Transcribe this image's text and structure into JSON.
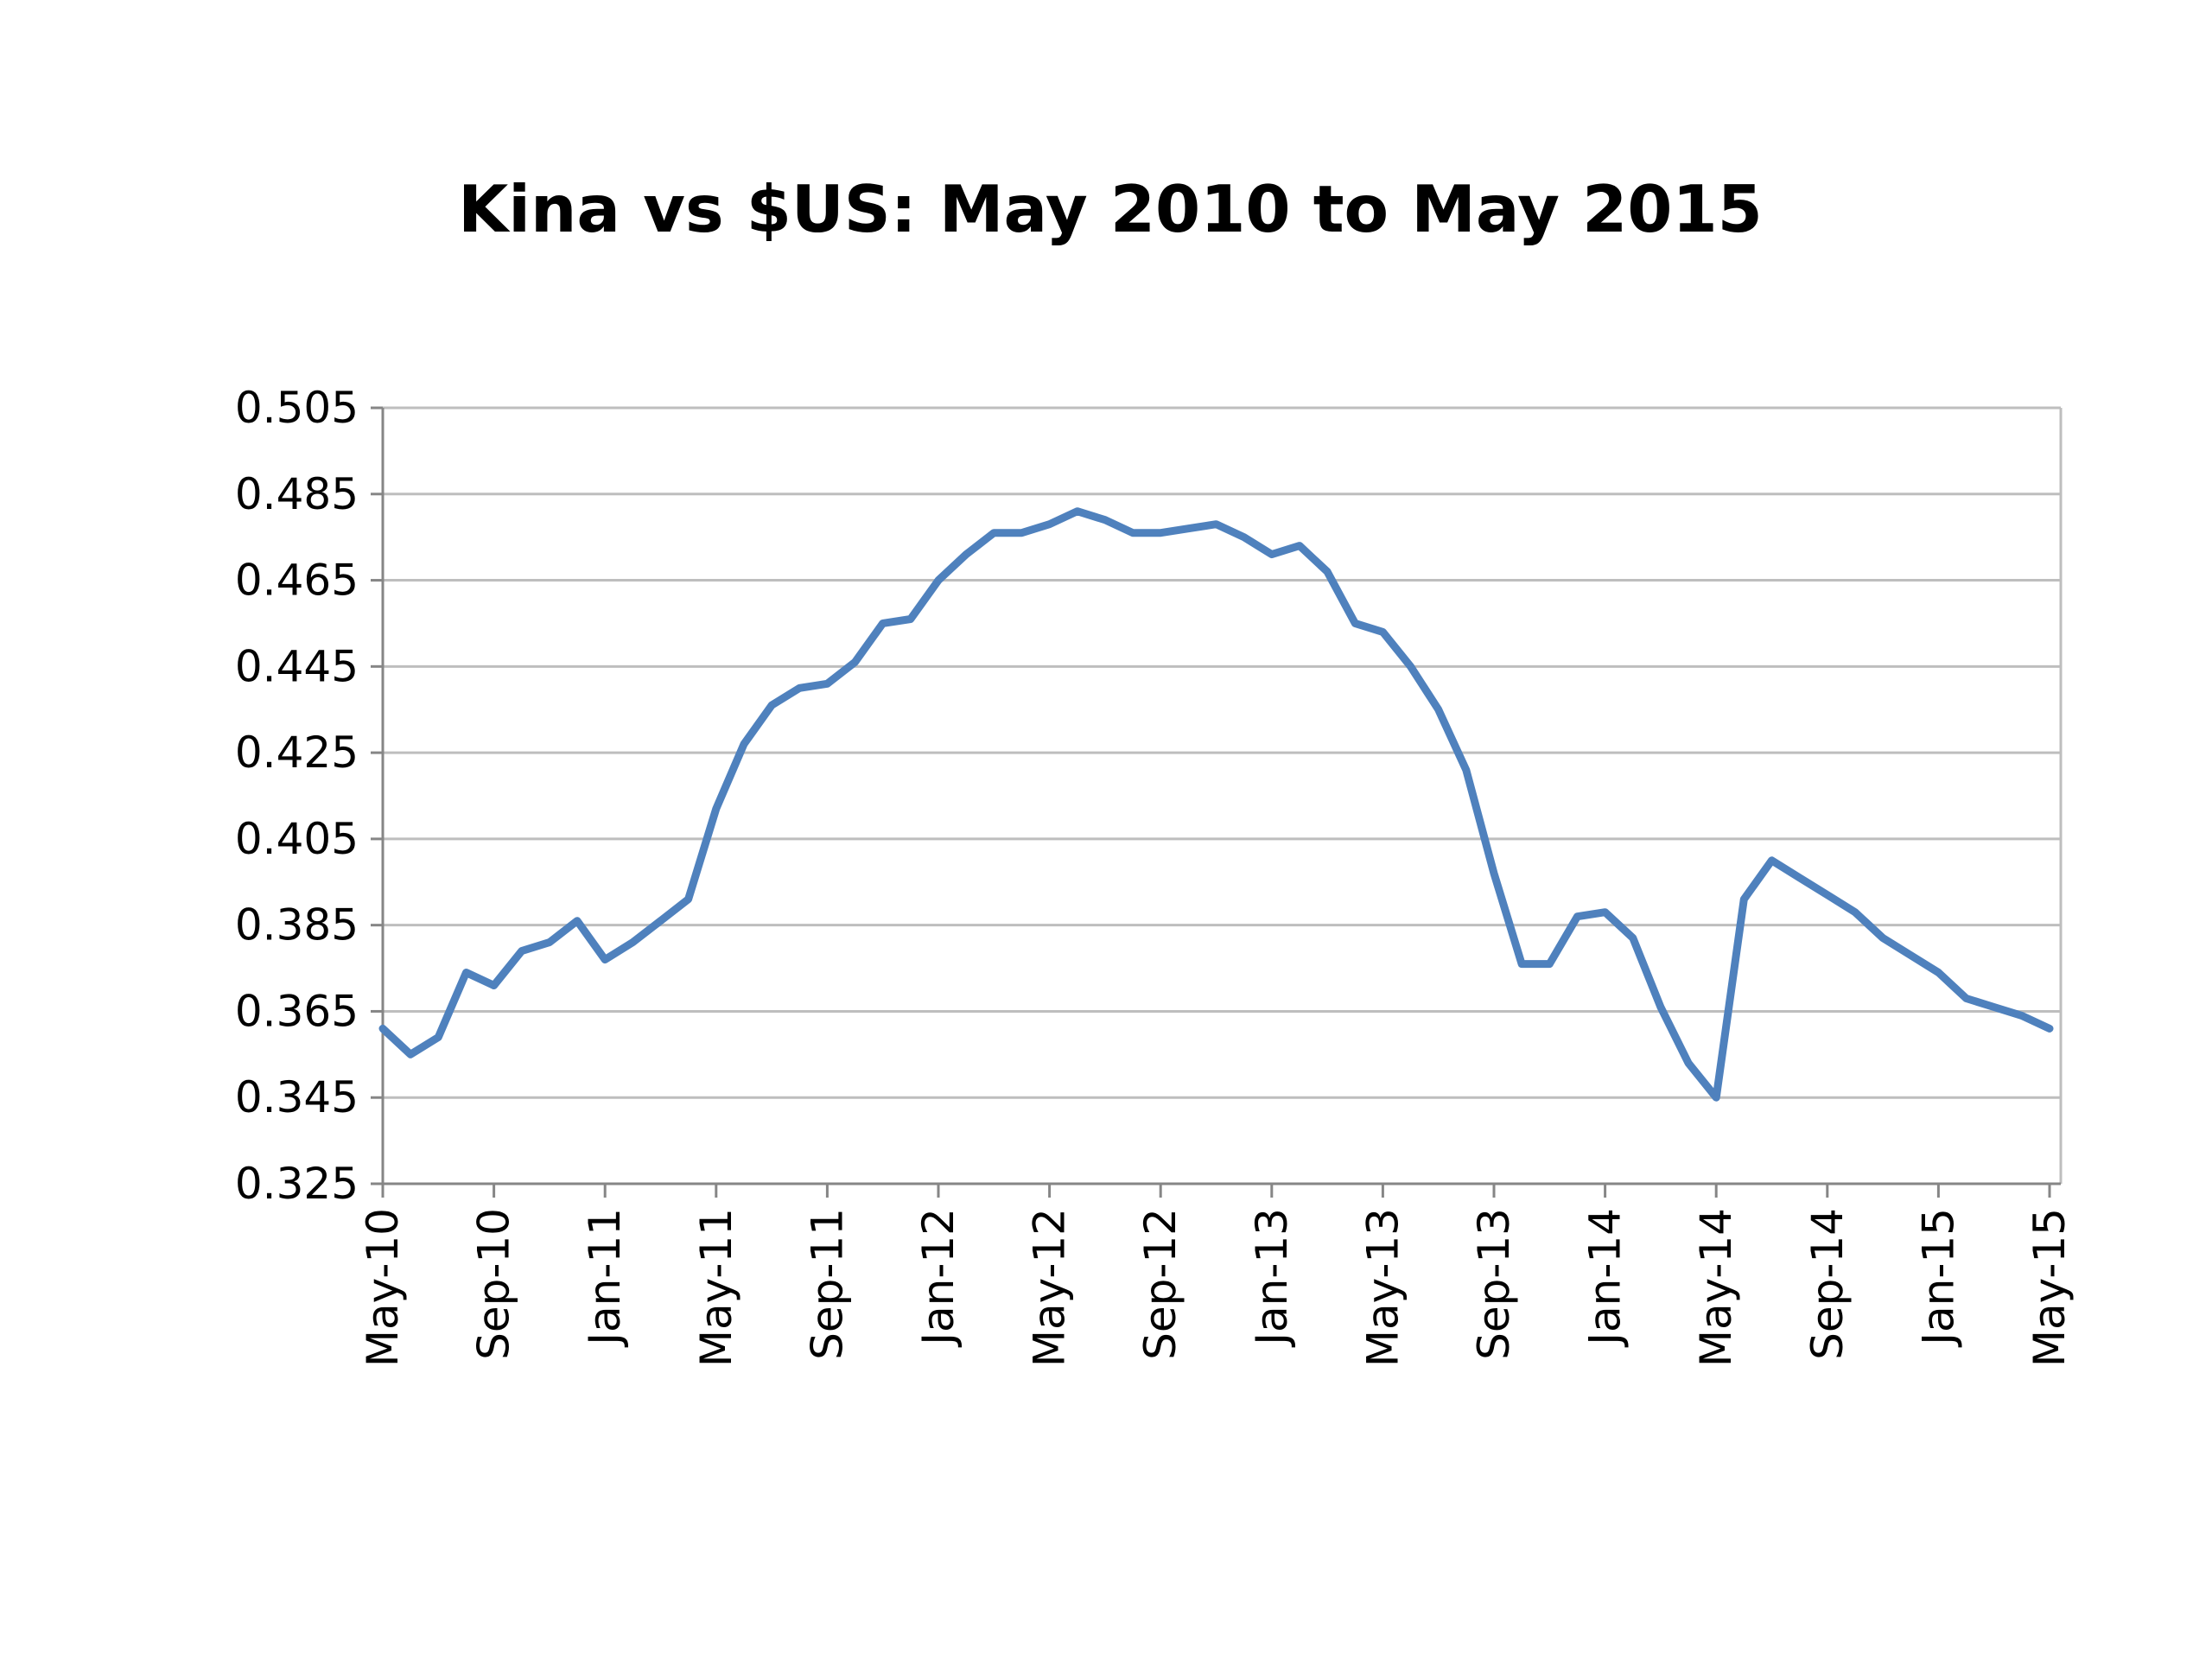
{
  "chart_data": {
    "type": "line",
    "title": "Kina vs $US: May 2010 to May 2015",
    "xlabel": "",
    "ylabel": "",
    "ylim": [
      0.325,
      0.505
    ],
    "yticks": [
      "0.505",
      "0.485",
      "0.465",
      "0.445",
      "0.425",
      "0.405",
      "0.385",
      "0.365",
      "0.345",
      "0.325"
    ],
    "xticks": [
      "May-10",
      "Sep-10",
      "Jan-11",
      "May-11",
      "Sep-11",
      "Jan-12",
      "May-12",
      "Sep-12",
      "Jan-13",
      "May-13",
      "Sep-13",
      "Jan-14",
      "May-14",
      "Sep-14",
      "Jan-15",
      "May-15"
    ],
    "grid": true,
    "legend": "none",
    "line_color": "#4F81BD",
    "x": [
      "May-10",
      "Jun-10",
      "Jul-10",
      "Aug-10",
      "Sep-10",
      "Oct-10",
      "Nov-10",
      "Dec-10",
      "Jan-11",
      "Feb-11",
      "Mar-11",
      "Apr-11",
      "May-11",
      "Jun-11",
      "Jul-11",
      "Aug-11",
      "Sep-11",
      "Oct-11",
      "Nov-11",
      "Dec-11",
      "Jan-12",
      "Feb-12",
      "Mar-12",
      "Apr-12",
      "May-12",
      "Jun-12",
      "Jul-12",
      "Aug-12",
      "Sep-12",
      "Oct-12",
      "Nov-12",
      "Dec-12",
      "Jan-13",
      "Feb-13",
      "Mar-13",
      "Apr-13",
      "May-13",
      "Jun-13",
      "Jul-13",
      "Aug-13",
      "Sep-13",
      "Oct-13",
      "Nov-13",
      "Dec-13",
      "Jan-14",
      "Feb-14",
      "Mar-14",
      "Apr-14",
      "May-14",
      "Jun-14",
      "Jul-14",
      "Aug-14",
      "Sep-14",
      "Oct-14",
      "Nov-14",
      "Dec-14",
      "Jan-15",
      "Feb-15",
      "Mar-15",
      "Apr-15",
      "May-15"
    ],
    "series": [
      {
        "values": [
          0.361,
          0.355,
          0.359,
          0.374,
          0.371,
          0.379,
          0.381,
          0.386,
          0.377,
          0.381,
          0.386,
          0.391,
          0.412,
          0.427,
          0.436,
          0.44,
          0.441,
          0.446,
          0.455,
          0.456,
          0.465,
          0.471,
          0.476,
          0.476,
          0.478,
          0.481,
          0.479,
          0.476,
          0.476,
          0.477,
          0.478,
          0.475,
          0.471,
          0.473,
          0.467,
          0.455,
          0.453,
          0.445,
          0.435,
          0.421,
          0.397,
          0.376,
          0.376,
          0.387,
          0.388,
          0.382,
          0.366,
          0.353,
          0.345,
          0.391,
          0.4,
          0.396,
          0.392,
          0.388,
          0.382,
          0.378,
          0.374,
          0.368,
          0.366,
          0.364,
          0.361
        ]
      }
    ]
  }
}
